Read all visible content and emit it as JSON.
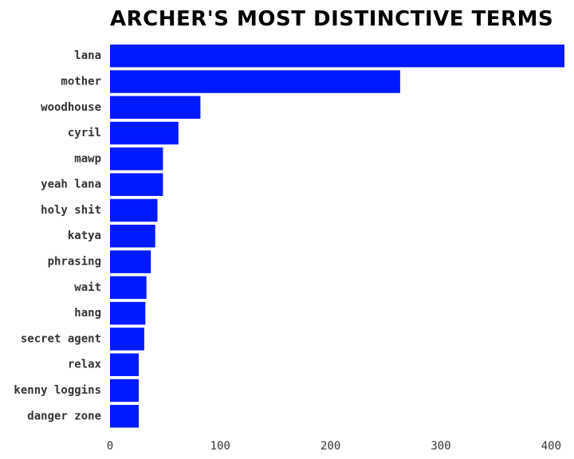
{
  "chart_data": {
    "type": "bar",
    "orientation": "horizontal",
    "title": "Archer's most distinctive terms",
    "xlabel": "",
    "ylabel": "",
    "categories": [
      "lana",
      "mother",
      "woodhouse",
      "cyril",
      "mawp",
      "yeah lana",
      "holy shit",
      "katya",
      "phrasing",
      "wait",
      "hang",
      "secret agent",
      "relax",
      "kenny loggins",
      "danger zone"
    ],
    "values": [
      412,
      263,
      82,
      62,
      48,
      48,
      43,
      41,
      37,
      33,
      32,
      31,
      26,
      26,
      26
    ],
    "xlim": [
      0,
      412
    ],
    "xticks": [
      0,
      100,
      200,
      300,
      400
    ],
    "grid": false,
    "legend": "none",
    "bar_color": "#0019ff"
  }
}
